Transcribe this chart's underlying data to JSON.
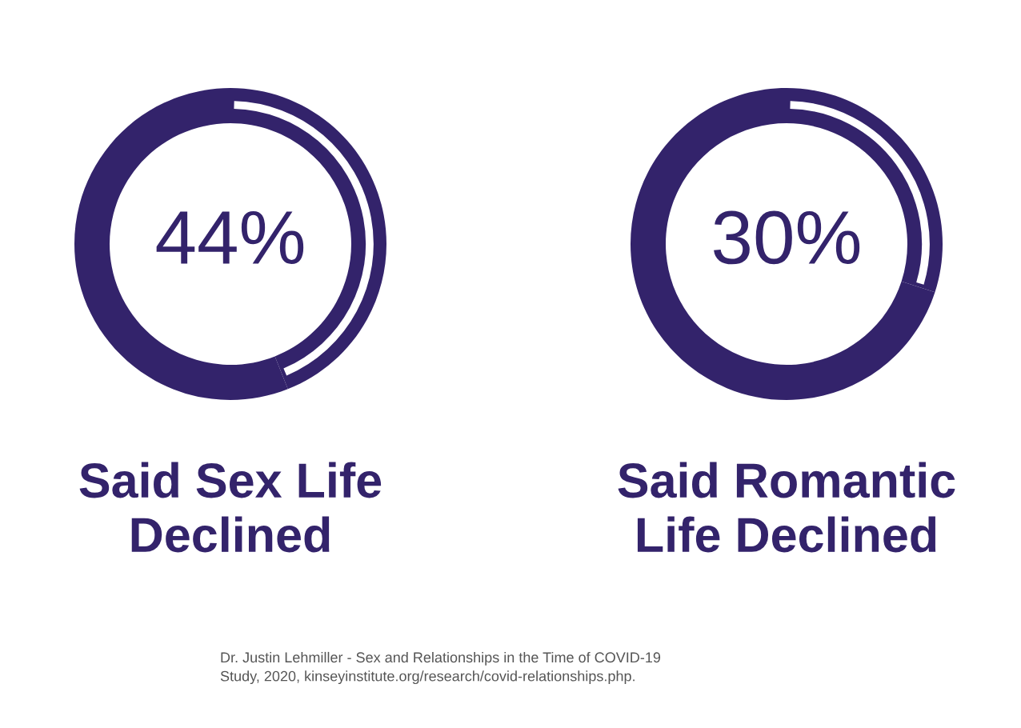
{
  "chart_data": [
    {
      "type": "donut",
      "title": "Said Sex Life\nDeclined",
      "categories": [
        null,
        null
      ],
      "values": [
        44,
        56
      ],
      "colors": [
        "#33236b",
        "#33236b"
      ],
      "value_labels": [
        "44%",
        null
      ]
    },
    {
      "type": "donut",
      "title": "Said Romantic\nLife Declined",
      "categories": [
        null,
        null
      ],
      "values": [
        30,
        70
      ],
      "colors": [
        "#33236b",
        "#33236b"
      ],
      "value_labels": [
        "30%",
        null
      ],
      "annotations": [
        "Dr. Justin Lehmiller - Sex and Relationships in the Time of COVID-19\nStudy, 2020, kinseyinstitute.org/research/covid-relationships.php."
      ]
    }
  ]
}
